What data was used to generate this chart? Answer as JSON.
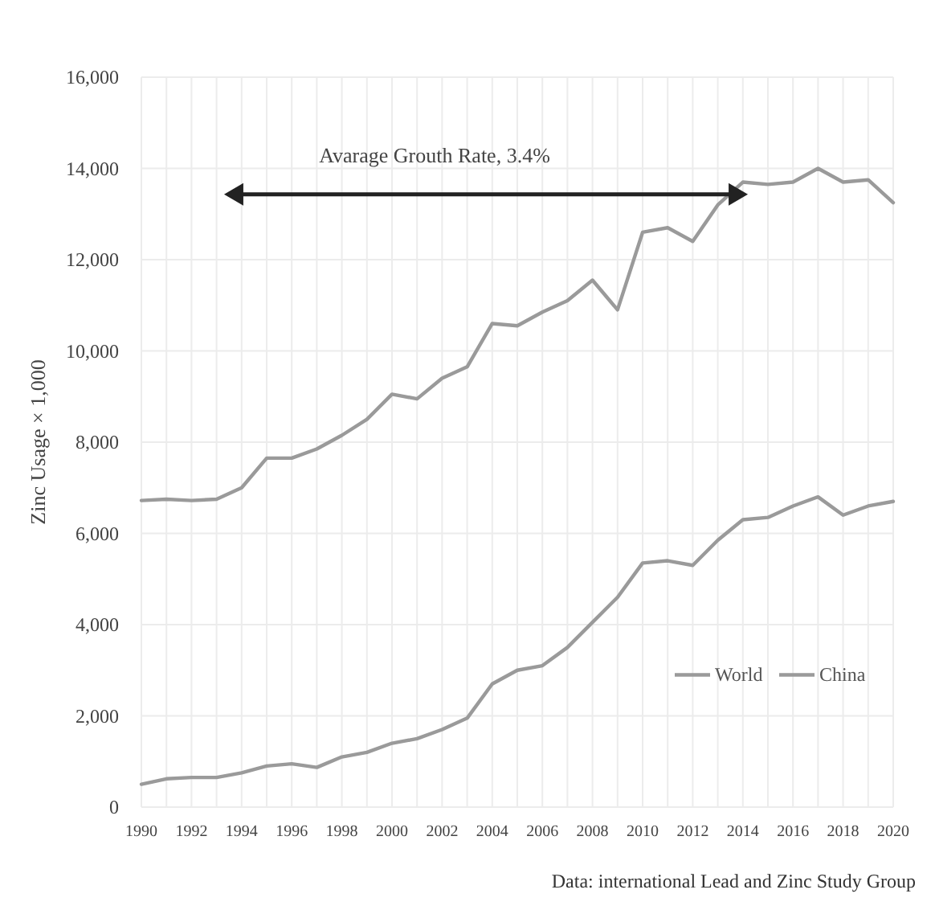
{
  "chart_data": {
    "type": "line",
    "ylabel": "Zinc Usage × 1,000",
    "annotations": [
      "Avarage Grouth Rate, 3.4%",
      "Data: international Lead and Zinc Study Group"
    ],
    "x": [
      1990,
      1991,
      1992,
      1993,
      1994,
      1995,
      1996,
      1997,
      1998,
      1999,
      2000,
      2001,
      2002,
      2003,
      2004,
      2005,
      2006,
      2007,
      2008,
      2009,
      2010,
      2011,
      2012,
      2013,
      2014,
      2015,
      2016,
      2017,
      2018,
      2019,
      2020
    ],
    "series": [
      {
        "name": "World",
        "color": "#9a9a9a",
        "values": [
          6720,
          6750,
          6720,
          6750,
          7000,
          7650,
          7650,
          7850,
          8150,
          8500,
          9050,
          8950,
          9400,
          9650,
          10600,
          10550,
          10850,
          11100,
          11550,
          10900,
          12600,
          12700,
          12400,
          13200,
          13700,
          13650,
          13700,
          14000,
          13700,
          13750,
          13250
        ]
      },
      {
        "name": "China",
        "color": "#9a9a9a",
        "values": [
          500,
          620,
          650,
          650,
          750,
          900,
          950,
          870,
          1100,
          1200,
          1400,
          1500,
          1700,
          1950,
          2700,
          3000,
          3100,
          3500,
          4050,
          4600,
          5350,
          5400,
          5300,
          5850,
          6300,
          6350,
          6600,
          6800,
          6400,
          6600,
          6700
        ]
      }
    ],
    "xlim": [
      1990,
      2020
    ],
    "xticks": [
      1990,
      {
        "value": 1991,
        "label": null
      },
      1992,
      {
        "value": 1993,
        "label": null
      },
      1994,
      {
        "value": 1995,
        "label": null
      },
      1996,
      {
        "value": 1997,
        "label": null
      },
      1998,
      {
        "value": 1999,
        "label": null
      },
      2000,
      {
        "value": 2001,
        "label": null
      },
      2002,
      {
        "value": 2003,
        "label": null
      },
      2004,
      {
        "value": 2005,
        "label": null
      },
      2006,
      {
        "value": 2007,
        "label": null
      },
      2008,
      {
        "value": 2009,
        "label": null
      },
      2010,
      {
        "value": 2011,
        "label": null
      },
      2012,
      {
        "value": 2013,
        "label": null
      },
      2014,
      {
        "value": 2015,
        "label": null
      },
      2016,
      {
        "value": 2017,
        "label": null
      },
      2018,
      {
        "value": 2019,
        "label": null
      },
      2020
    ],
    "ylim": [
      0,
      16000
    ],
    "yticks": [
      0,
      {
        "value": 2000,
        "label": "2,000"
      },
      {
        "value": 4000,
        "label": "4,000"
      },
      {
        "value": 6000,
        "label": "6,000"
      },
      {
        "value": 8000,
        "label": "8,000"
      },
      {
        "value": 10000,
        "label": "10,000"
      },
      {
        "value": 12000,
        "label": "12,000"
      },
      {
        "value": 14000,
        "label": "14,000"
      },
      {
        "value": 16000,
        "label": "16,000"
      }
    ],
    "grid": true,
    "legend": "right",
    "marker": "none",
    "line_style": "solid"
  }
}
